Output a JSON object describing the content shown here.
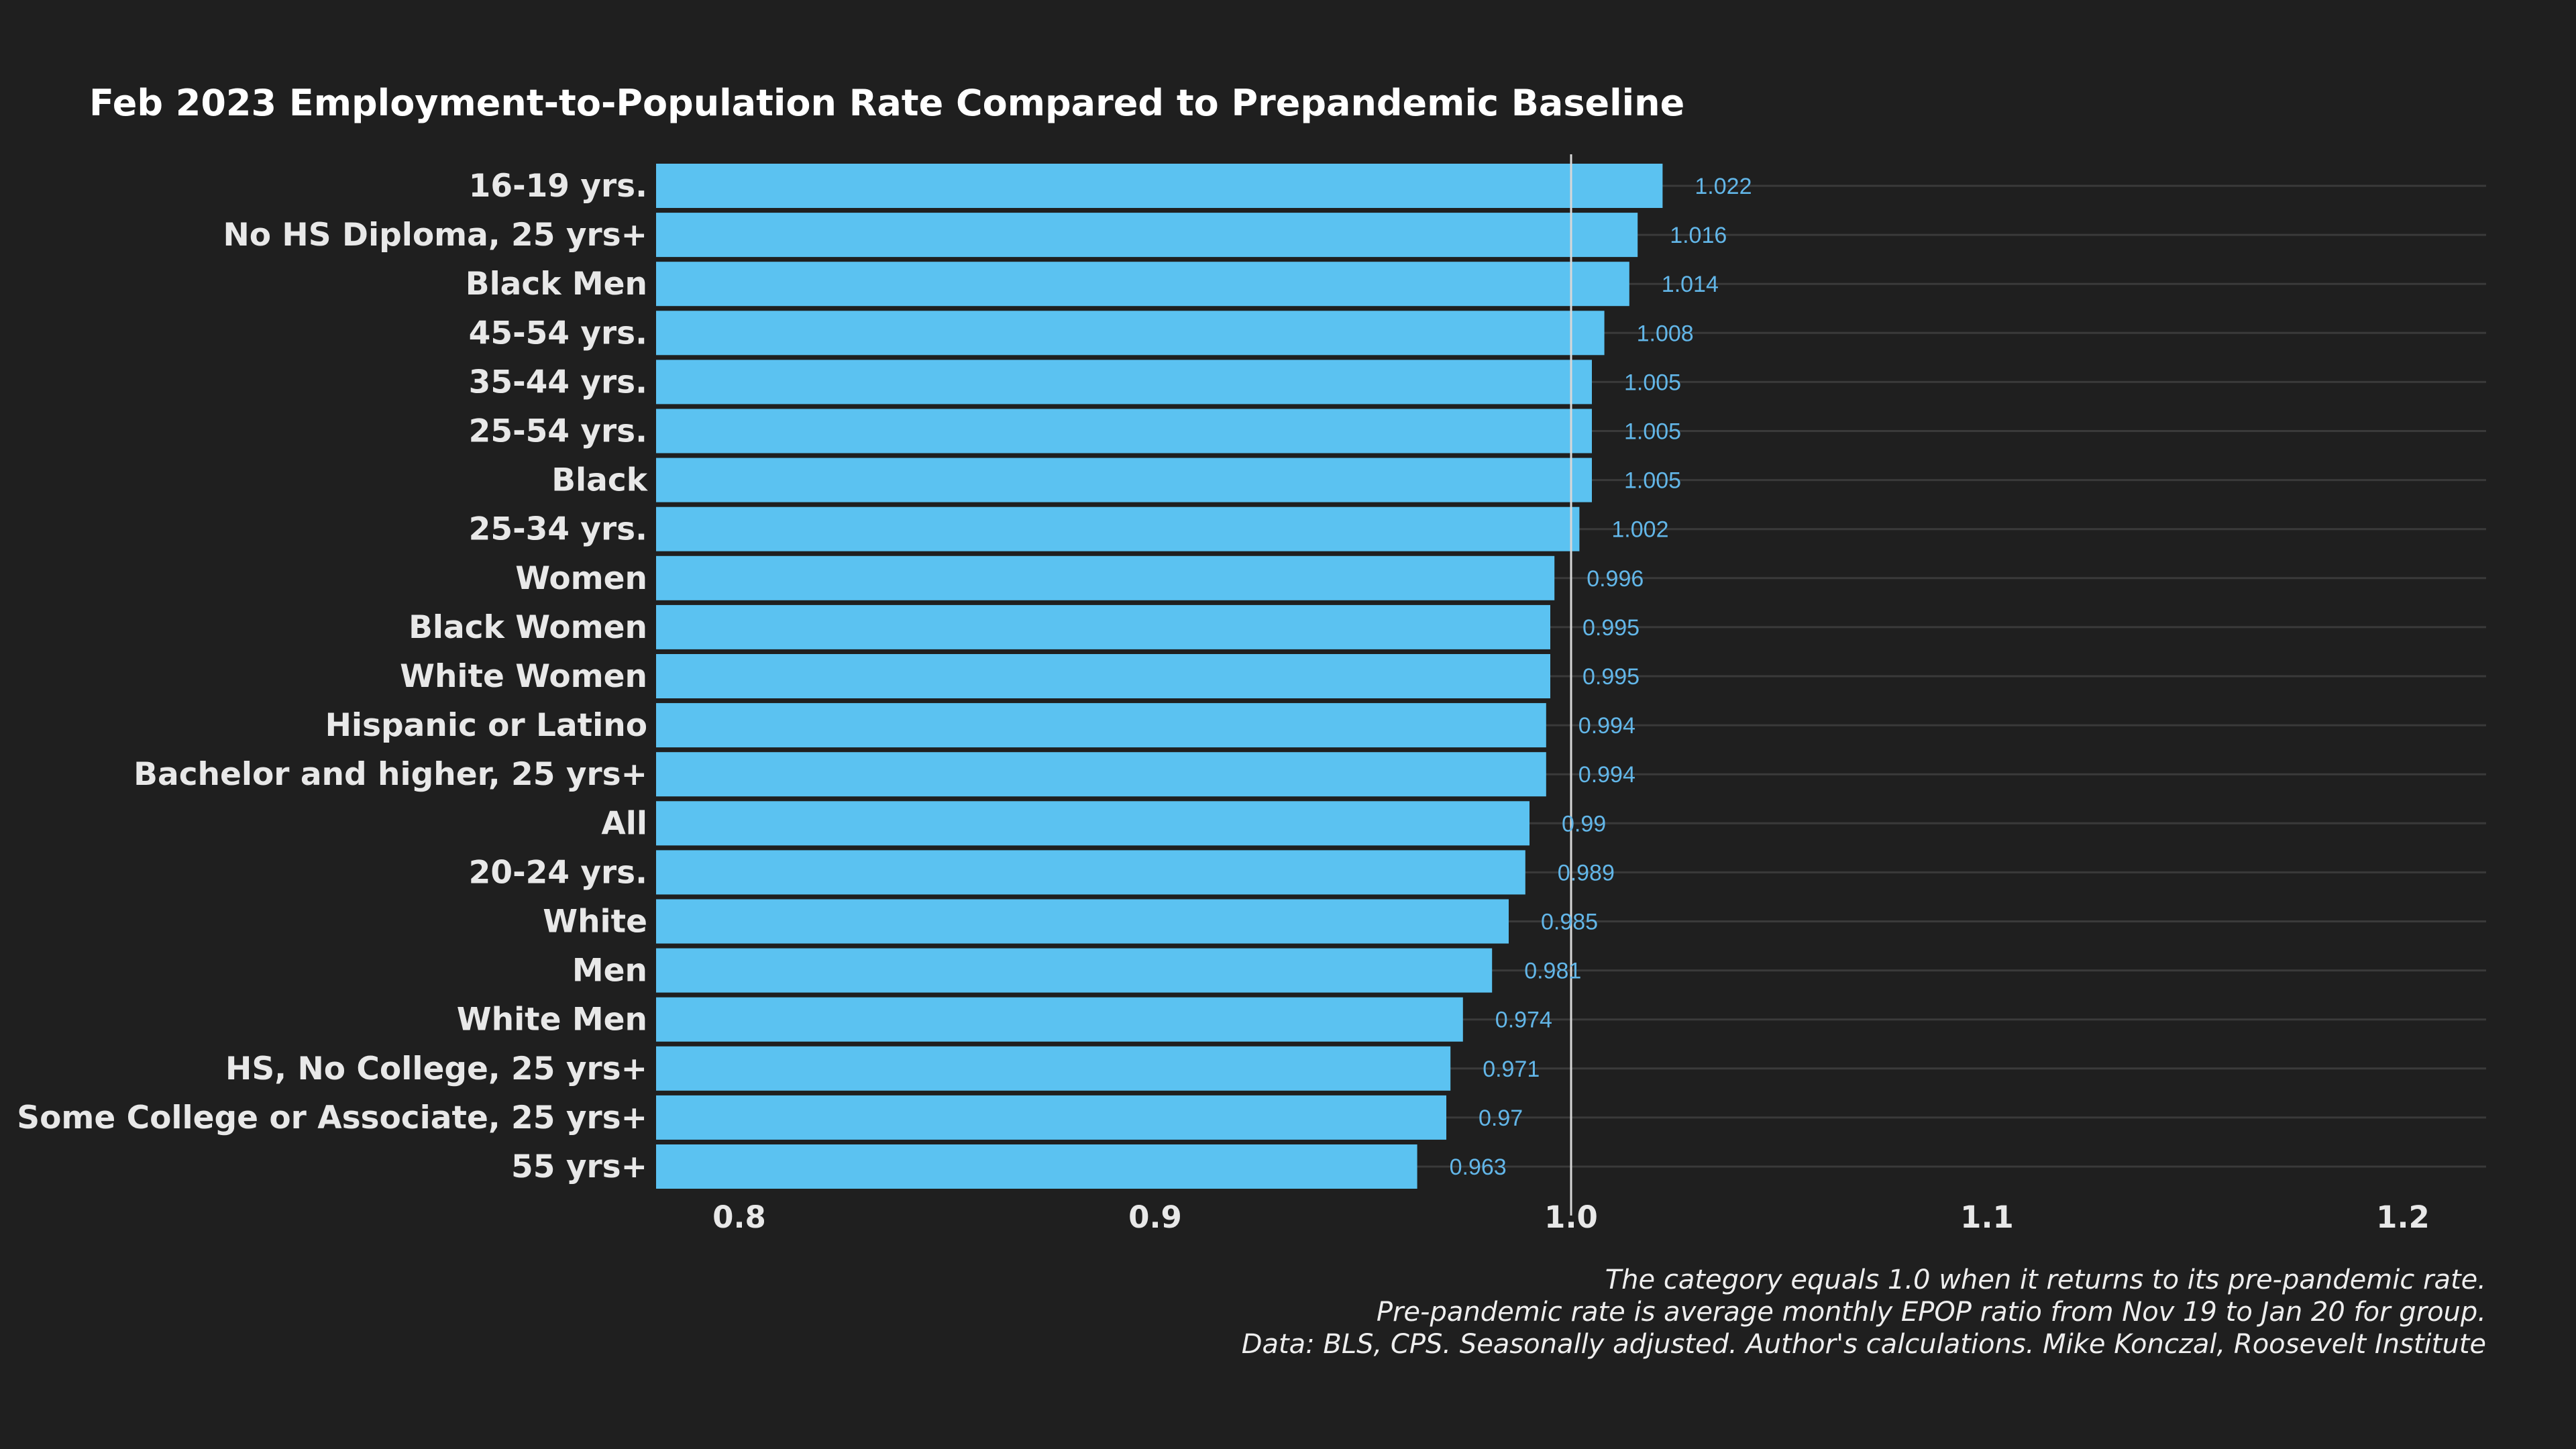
{
  "colors": {
    "background": "#1f1f1f",
    "bar": "#5bc2f1",
    "value_label": "#62b6e8",
    "gridline": "#3a3a3a",
    "reference_line": "#d8d8d8",
    "text": "#e8e8e8"
  },
  "chart_data": {
    "type": "bar",
    "orientation": "horizontal",
    "title": "Feb 2023 Employment-to-Population Rate Compared to Prepandemic Baseline",
    "xlabel": "",
    "ylabel": "",
    "xlim": [
      0.78,
      1.22
    ],
    "xticks": [
      0.8,
      0.9,
      1.0,
      1.1,
      1.2
    ],
    "xtick_labels": [
      "0.8",
      "0.9",
      "1.0",
      "1.1",
      "1.2"
    ],
    "reference_line": 1.0,
    "grid": "horizontal",
    "categories": [
      "16-19 yrs.",
      "No HS Diploma, 25 yrs+",
      "Black Men",
      "45-54 yrs.",
      "35-44 yrs.",
      "25-54 yrs.",
      "Black",
      "25-34 yrs.",
      "Women",
      "Black Women",
      "White Women",
      "Hispanic or Latino",
      "Bachelor and higher, 25 yrs+",
      "All",
      "20-24 yrs.",
      "White",
      "Men",
      "White Men",
      "HS, No College, 25 yrs+",
      "Some College or Associate, 25 yrs+",
      "55 yrs+"
    ],
    "values": [
      1.022,
      1.016,
      1.014,
      1.008,
      1.005,
      1.005,
      1.005,
      1.002,
      0.996,
      0.995,
      0.995,
      0.994,
      0.994,
      0.99,
      0.989,
      0.985,
      0.981,
      0.974,
      0.971,
      0.97,
      0.963
    ],
    "value_labels": [
      "1.022",
      "1.016",
      "1.014",
      "1.008",
      "1.005",
      "1.005",
      "1.005",
      "1.002",
      "0.996",
      "0.995",
      "0.995",
      "0.994",
      "0.994",
      "0.99",
      "0.989",
      "0.985",
      "0.981",
      "0.974",
      "0.971",
      "0.97",
      "0.963"
    ],
    "caption": [
      "The category equals 1.0 when it returns to its pre-pandemic rate.",
      "Pre-pandemic rate is average monthly EPOP ratio from Nov 19 to Jan 20 for group.",
      "Data: BLS, CPS. Seasonally adjusted. Author's calculations. Mike Konczal, Roosevelt Institute"
    ]
  }
}
